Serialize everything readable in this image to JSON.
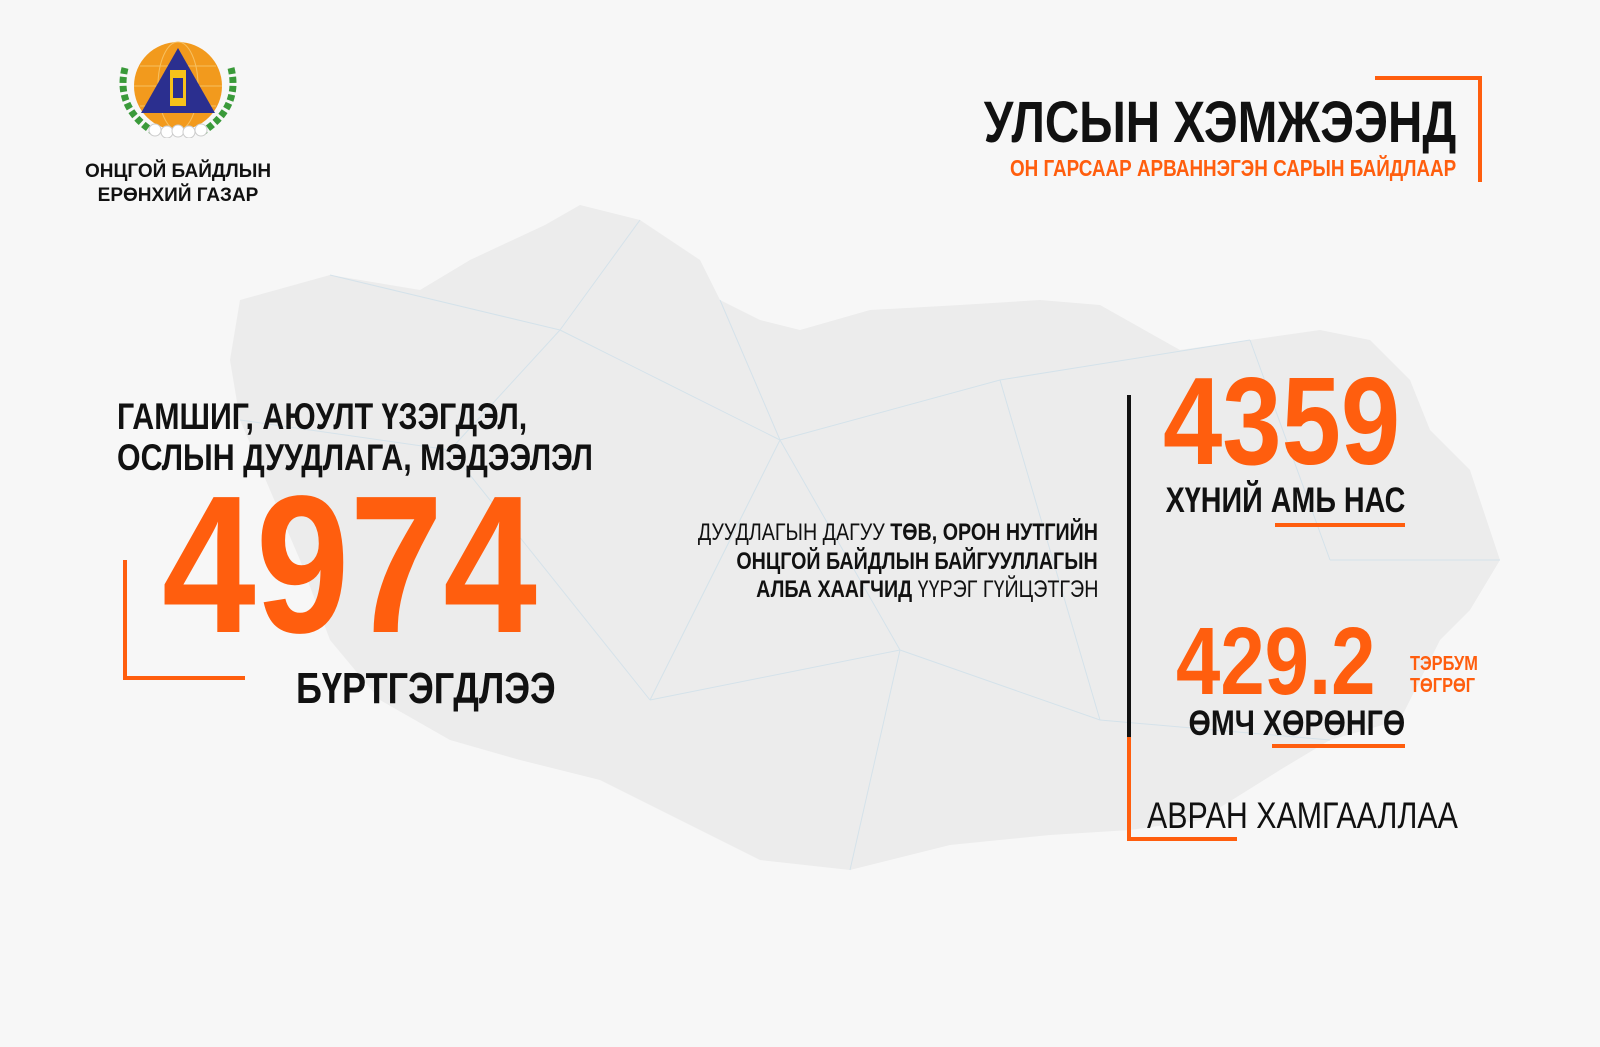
{
  "colors": {
    "accent": "#ff5e0e",
    "text": "#111111",
    "background": "#f7f7f7",
    "map": "#ececec"
  },
  "logo": {
    "line1": "ОНЦГОЙ БАЙДЛЫН",
    "line2": "ЕРӨНХИЙ ГАЗАР"
  },
  "header": {
    "title": "УЛСЫН ХЭМЖЭЭНД",
    "subtitle": "ОН ГАРСААР АРВАННЭГЭН САРЫН БАЙДЛААР"
  },
  "left": {
    "line1": "ГАМШИГ, АЮУЛТ ҮЗЭГДЭЛ,",
    "line2": "ОСЛЫН ДУУДЛАГА, МЭДЭЭЛЭЛ",
    "number": "4974",
    "caption": "БҮРТГЭГДЛЭЭ"
  },
  "middle": {
    "l1_regular": "ДУУДЛАГЫН ДАГУУ ",
    "l1_bold": "ТӨВ, ОРОН НУТГИЙН",
    "l2_bold": "ОНЦГОЙ БАЙДЛЫН БАЙГУУЛЛАГЫН",
    "l3_bold": "АЛБА ХААГЧИД",
    "l3_regular": " ҮҮРЭГ ГҮЙЦЭТГЭН"
  },
  "right": {
    "lives_number": "4359",
    "lives_a": "ХҮНИЙ ",
    "lives_b": "АМЬ НАС",
    "property_number": "429.2",
    "unit1": "ТЭРБУМ",
    "unit2": "ТӨГРӨГ",
    "property_a": "ӨМЧ ",
    "property_b": "ХӨРӨНГӨ",
    "result": "АВРАН ХАМГААЛЛАА"
  }
}
